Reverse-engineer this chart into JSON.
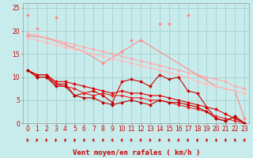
{
  "background_color": "#c8ecec",
  "grid_color": "#aad4d4",
  "xlabel": "Vent moyen/en rafales ( km/h )",
  "xlim": [
    -0.5,
    23.5
  ],
  "ylim": [
    0,
    26
  ],
  "yticks": [
    0,
    5,
    10,
    15,
    20,
    25
  ],
  "xticks": [
    0,
    1,
    2,
    3,
    4,
    5,
    6,
    7,
    8,
    9,
    10,
    11,
    12,
    13,
    14,
    15,
    16,
    17,
    18,
    19,
    20,
    21,
    22,
    23
  ],
  "series": [
    {
      "x": [
        0,
        1,
        3,
        11,
        14,
        15,
        17
      ],
      "y": [
        23.5,
        20.5,
        23.0,
        18.0,
        21.5,
        21.5,
        23.5
      ],
      "color": "#ff8888",
      "connected": false,
      "marker": "D",
      "markersize": 2.0,
      "linewidth": 0.8
    },
    {
      "x": [
        0,
        2,
        6,
        8,
        10,
        12,
        18,
        20,
        22,
        23
      ],
      "y": [
        19.0,
        18.5,
        15.5,
        13.0,
        15.5,
        18.0,
        10.5,
        8.0,
        7.0,
        1.0
      ],
      "color": "#ff8888",
      "connected": true,
      "marker": "D",
      "markersize": 2.0,
      "linewidth": 0.8
    },
    {
      "x": [
        0,
        1,
        2,
        3,
        4,
        5,
        6,
        7,
        8,
        9,
        10,
        11,
        12,
        13,
        14,
        15,
        16,
        17,
        18,
        19,
        20,
        21,
        22,
        23
      ],
      "y": [
        19.5,
        19.0,
        18.5,
        18.0,
        17.5,
        17.0,
        16.5,
        16.0,
        15.5,
        15.0,
        14.5,
        14.0,
        13.5,
        13.0,
        12.5,
        12.0,
        11.5,
        11.0,
        10.5,
        10.0,
        9.5,
        9.0,
        8.0,
        7.5
      ],
      "color": "#ffaaaa",
      "connected": true,
      "marker": "D",
      "markersize": 2.0,
      "linewidth": 0.8
    },
    {
      "x": [
        0,
        1,
        2,
        3,
        4,
        5,
        6,
        7,
        8,
        9,
        10,
        11,
        12,
        13,
        14,
        15,
        16,
        17,
        18,
        19,
        20,
        21,
        22,
        23
      ],
      "y": [
        18.5,
        18.0,
        17.5,
        17.0,
        16.5,
        16.0,
        15.5,
        15.0,
        14.5,
        14.0,
        13.5,
        13.0,
        12.5,
        12.0,
        11.5,
        11.0,
        10.5,
        10.0,
        9.0,
        8.5,
        8.0,
        7.5,
        7.0,
        6.5
      ],
      "color": "#ffbbbb",
      "connected": true,
      "marker": "D",
      "markersize": 2.0,
      "linewidth": 0.8
    },
    {
      "x": [
        0,
        1,
        2,
        3,
        4,
        5,
        6,
        7,
        8,
        9,
        10,
        11,
        12,
        13,
        14,
        15,
        16,
        17,
        18,
        19,
        20,
        21,
        22,
        23
      ],
      "y": [
        11.5,
        10.5,
        10.5,
        8.5,
        8.5,
        6.0,
        6.5,
        7.0,
        6.0,
        4.5,
        9.0,
        9.5,
        9.0,
        8.0,
        10.5,
        9.5,
        10.0,
        7.0,
        6.5,
        3.5,
        1.0,
        0.5,
        1.5,
        0.0
      ],
      "color": "#cc0000",
      "connected": true,
      "marker": "D",
      "markersize": 2.0,
      "linewidth": 0.8
    },
    {
      "x": [
        0,
        1,
        2,
        3,
        4,
        5,
        6,
        7,
        8,
        9,
        10,
        11,
        12,
        13,
        14,
        15,
        16,
        17,
        18,
        19,
        20,
        21,
        22,
        23
      ],
      "y": [
        11.5,
        10.5,
        10.5,
        9.0,
        9.0,
        8.5,
        8.0,
        7.5,
        7.0,
        6.5,
        7.0,
        6.5,
        6.5,
        6.0,
        6.0,
        5.5,
        5.0,
        4.5,
        4.0,
        3.5,
        3.0,
        2.0,
        1.0,
        0.0
      ],
      "color": "#dd0000",
      "connected": true,
      "marker": "D",
      "markersize": 2.0,
      "linewidth": 0.8
    },
    {
      "x": [
        0,
        1,
        2,
        3,
        4,
        5,
        6,
        7,
        8,
        9,
        10,
        11,
        12,
        13,
        14,
        15,
        16,
        17,
        18,
        19,
        20,
        21,
        22,
        23
      ],
      "y": [
        11.5,
        10.0,
        10.0,
        8.5,
        8.0,
        7.5,
        6.5,
        6.0,
        6.5,
        6.0,
        6.0,
        5.5,
        5.5,
        5.0,
        5.0,
        4.5,
        4.0,
        3.5,
        3.0,
        2.5,
        1.5,
        1.0,
        0.5,
        0.0
      ],
      "color": "#ee2222",
      "connected": true,
      "marker": "D",
      "markersize": 2.0,
      "linewidth": 0.8
    },
    {
      "x": [
        0,
        1,
        2,
        3,
        4,
        5,
        6,
        7,
        8,
        9,
        10,
        11,
        12,
        13,
        14,
        15,
        16,
        17,
        18,
        19,
        20,
        21,
        22,
        23
      ],
      "y": [
        11.5,
        10.0,
        10.0,
        8.0,
        8.0,
        6.0,
        5.5,
        5.5,
        4.5,
        4.0,
        4.5,
        5.0,
        4.5,
        4.0,
        5.0,
        4.5,
        4.5,
        4.0,
        3.5,
        2.5,
        1.0,
        0.5,
        1.5,
        0.0
      ],
      "color": "#bb0000",
      "connected": true,
      "marker": "D",
      "markersize": 2.0,
      "linewidth": 0.8
    }
  ],
  "arrow_color": "#cc0000",
  "xlabel_fontsize": 6.5,
  "tick_fontsize": 5.5
}
